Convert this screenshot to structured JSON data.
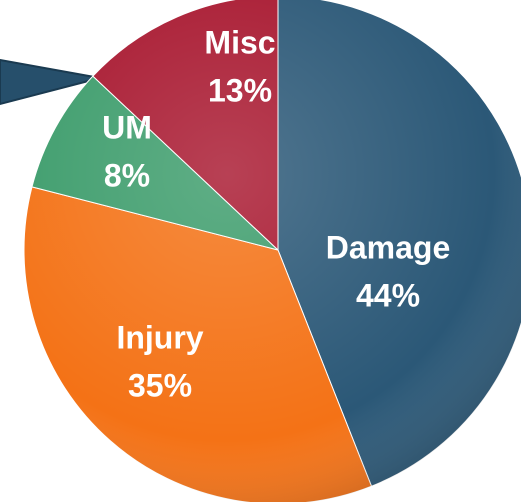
{
  "chart_data": {
    "type": "pie",
    "categories": [
      "Damage",
      "Injury",
      "UM",
      "Misc"
    ],
    "values": [
      44,
      35,
      8,
      13
    ],
    "value_labels": [
      "44%",
      "35%",
      "8%",
      "13%"
    ],
    "colors": [
      "#2b5877",
      "#f47216",
      "#3c9c6b",
      "#a8172f"
    ]
  }
}
